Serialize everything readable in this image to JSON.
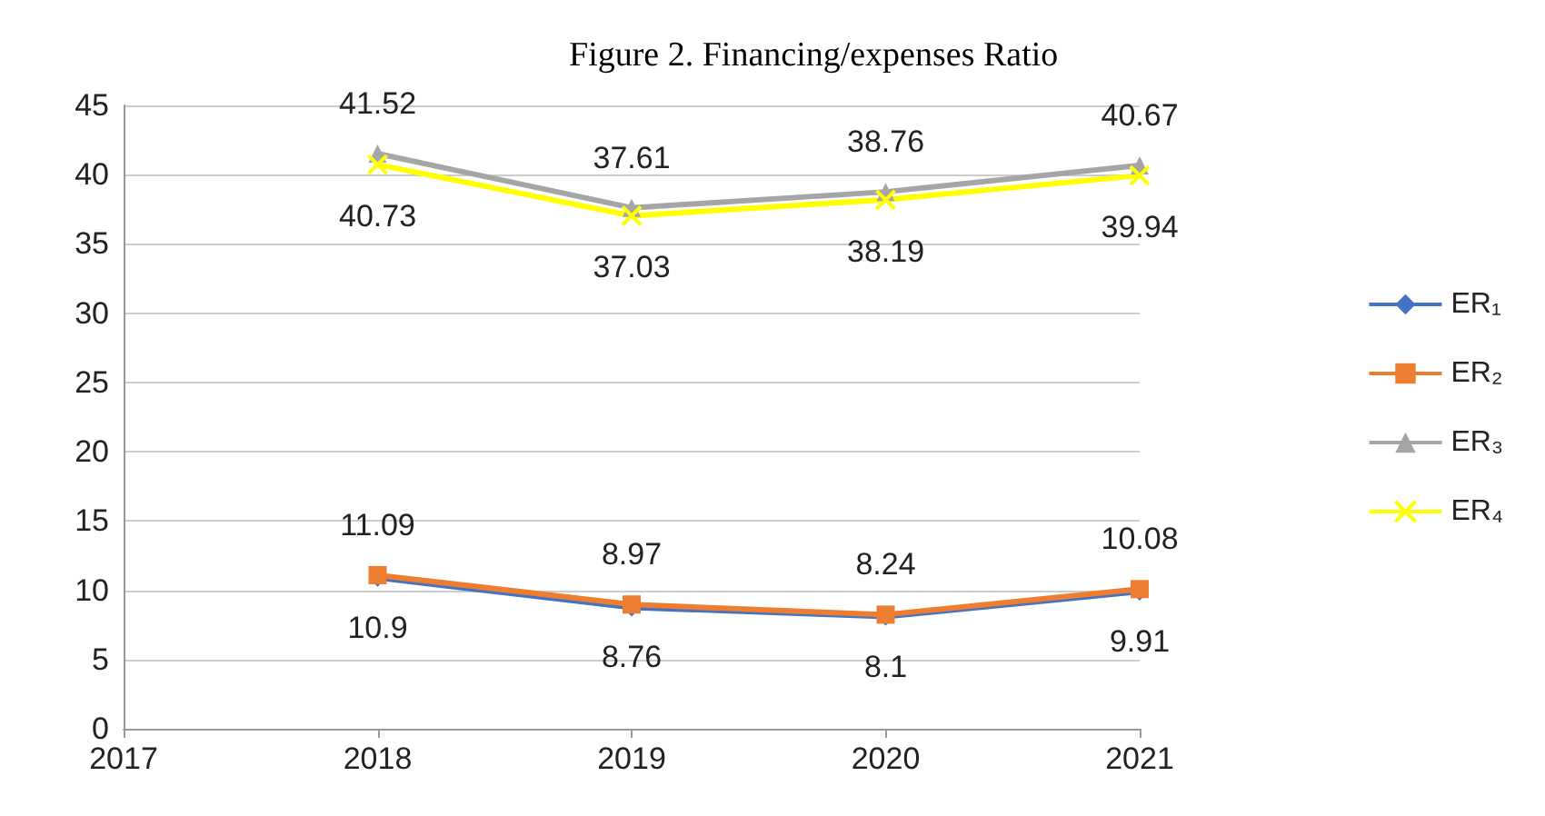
{
  "chart_data": {
    "type": "line",
    "title": "Figure 2. Financing/expenses Ratio",
    "x": [
      2018,
      2019,
      2020,
      2021
    ],
    "xlim": [
      2017,
      2021
    ],
    "xticks": [
      2017,
      2018,
      2019,
      2020,
      2021
    ],
    "ylim": [
      0,
      45
    ],
    "yticks": [
      0,
      5,
      10,
      15,
      20,
      25,
      30,
      35,
      40,
      45
    ],
    "grid": "y",
    "legend": "right",
    "data_labels": true,
    "series": [
      {
        "name": "ER₁",
        "color": "#4472c4",
        "marker": "diamond",
        "values": [
          10.9,
          8.76,
          8.1,
          9.91
        ]
      },
      {
        "name": "ER₂",
        "color": "#ed7d31",
        "marker": "square",
        "values": [
          11.09,
          8.97,
          8.24,
          10.08
        ]
      },
      {
        "name": "ER₃",
        "color": "#a5a5a5",
        "marker": "triangle",
        "values": [
          41.52,
          37.61,
          38.76,
          40.67
        ]
      },
      {
        "name": "ER₄",
        "color": "#ffff00",
        "marker": "cross",
        "values": [
          40.73,
          37.03,
          38.19,
          39.94
        ]
      }
    ]
  }
}
